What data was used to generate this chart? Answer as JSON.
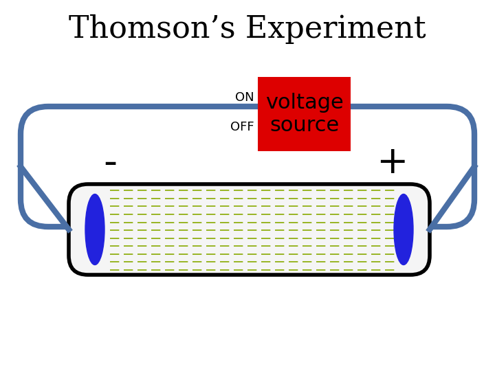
{
  "title": "Thomson’s Experiment",
  "title_fontsize": 32,
  "background_color": "#ffffff",
  "outer_tube_color": "#4a6fa5",
  "outer_tube_linewidth": 6,
  "inner_tube_color": "#000000",
  "inner_tube_linewidth": 4,
  "inner_tube_fill": "#f5f5f5",
  "electrode_color": "#2222dd",
  "dashed_line_color": "#88aa00",
  "voltage_box_color": "#dd0000",
  "voltage_text": "voltage\nsource",
  "voltage_fontsize": 22,
  "on_text": "ON",
  "off_text": "OFF",
  "on_off_fontsize": 13,
  "minus_text": "-",
  "plus_text": "+",
  "sign_fontsize": 40
}
